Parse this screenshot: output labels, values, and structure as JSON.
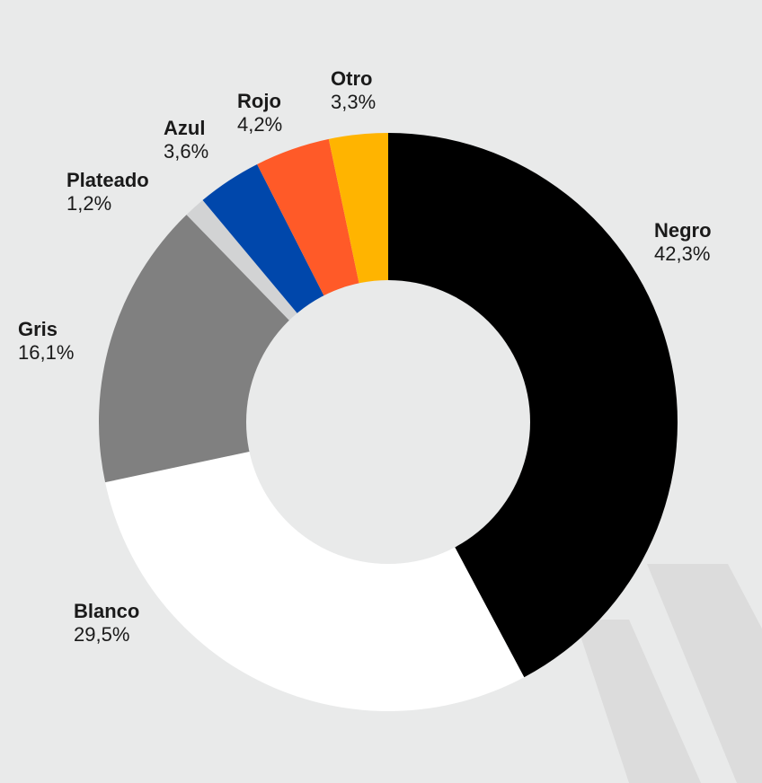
{
  "chart_data": {
    "type": "pie",
    "categories": [
      "Negro",
      "Blanco",
      "Gris",
      "Plateado",
      "Azul",
      "Rojo",
      "Otro"
    ],
    "values": [
      42.3,
      29.5,
      16.1,
      1.2,
      3.6,
      4.2,
      3.3
    ],
    "value_labels": [
      "42,3%",
      "29,5%",
      "16,1%",
      "1,2%",
      "3,6%",
      "4,2%",
      "3,3%"
    ],
    "colors": [
      "#000000",
      "#ffffff",
      "#808080",
      "#d2d3d4",
      "#0047ab",
      "#ff5a28",
      "#ffb400"
    ]
  }
}
